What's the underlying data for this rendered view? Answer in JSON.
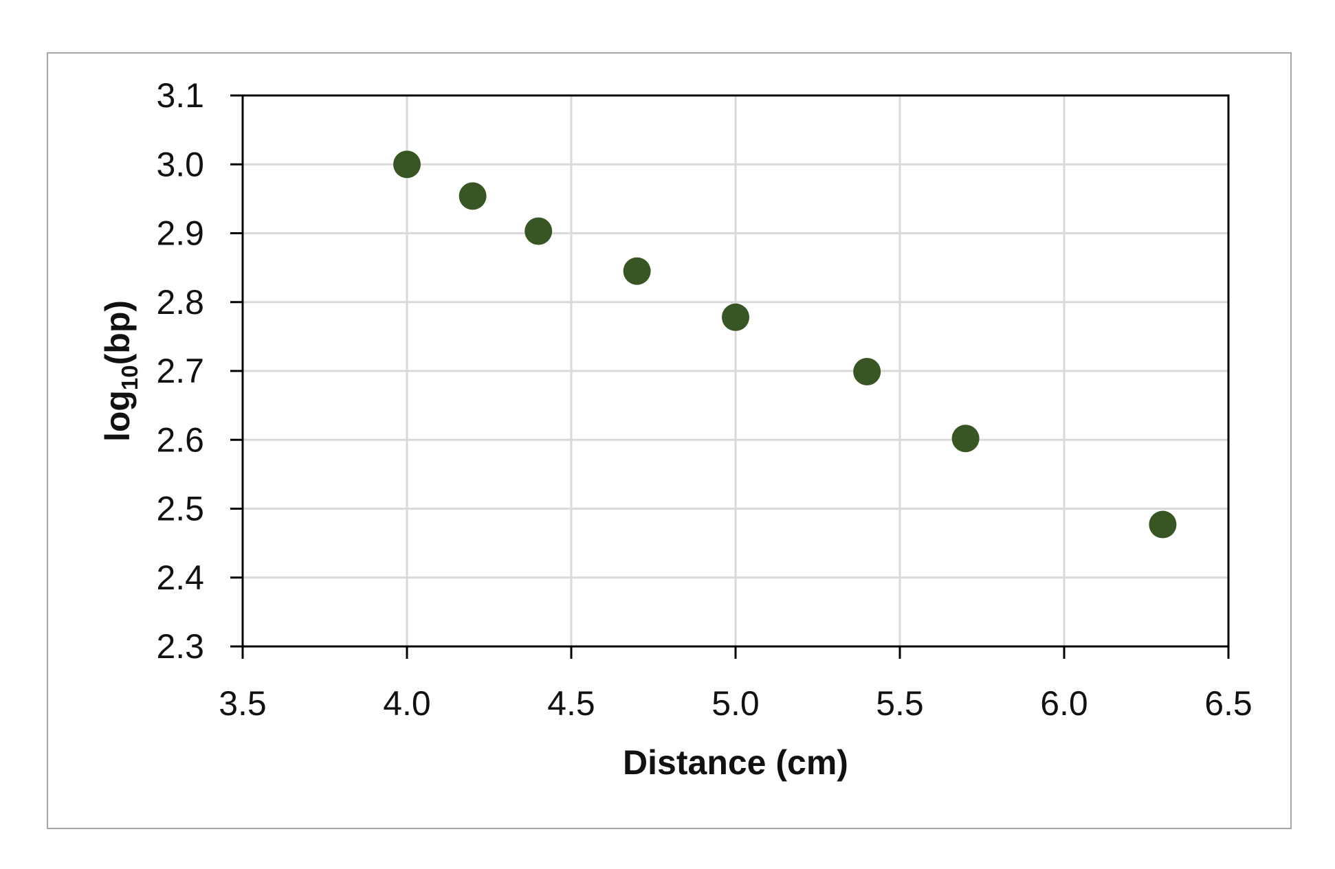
{
  "chart_data": {
    "type": "scatter",
    "xlabel": "Distance (cm)",
    "ylabel": {
      "prefix": "log",
      "subscript": "10",
      "suffix": "(bp)"
    },
    "xlim": [
      3.5,
      6.5
    ],
    "ylim": [
      2.3,
      3.1
    ],
    "x_ticks": [
      "3.5",
      "4.0",
      "4.5",
      "5.0",
      "5.5",
      "6.0",
      "6.5"
    ],
    "y_ticks": [
      "2.3",
      "2.4",
      "2.5",
      "2.6",
      "2.7",
      "2.8",
      "2.9",
      "3.0",
      "3.1"
    ],
    "grid": true,
    "legend": "none",
    "marker_color": "#375623",
    "series": [
      {
        "x": [
          4.0,
          4.2,
          4.4,
          4.7,
          5.0,
          5.4,
          5.7,
          6.3
        ],
        "y": [
          3.0,
          2.954,
          2.903,
          2.845,
          2.778,
          2.699,
          2.602,
          2.477
        ]
      }
    ]
  }
}
